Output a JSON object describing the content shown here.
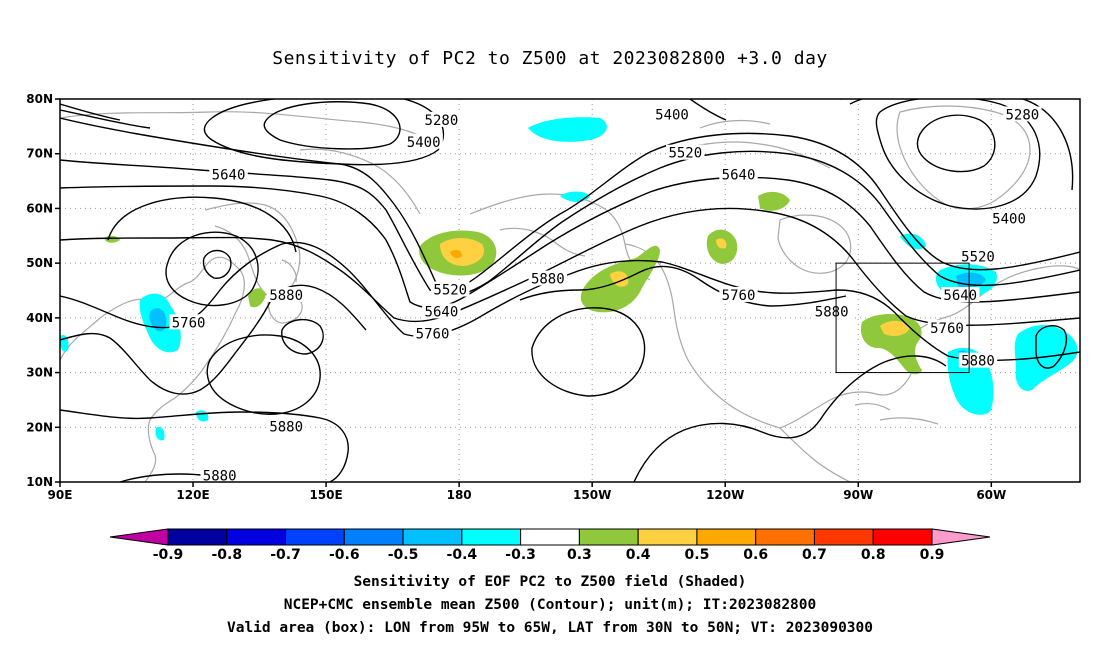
{
  "title": "Sensitivity of PC2 to Z500 at 2023082800 +3.0 day",
  "map": {
    "lat_labels": [
      "80N",
      "70N",
      "60N",
      "50N",
      "40N",
      "30N",
      "20N",
      "10N"
    ],
    "lon_labels": [
      "90E",
      "120E",
      "150E",
      "180",
      "150W",
      "120W",
      "90W",
      "60W"
    ],
    "lat_range": [
      10,
      80
    ],
    "lon_range_east": [
      90,
      320
    ],
    "grid": "dotted",
    "contour_color": "#000000",
    "coastline_color": "#a8a8a8",
    "contour_labels": [
      {
        "text": "5280",
        "lon": 176,
        "lat": 76
      },
      {
        "text": "5400",
        "lon": 172,
        "lat": 72
      },
      {
        "text": "5640",
        "lon": 128,
        "lat": 66
      },
      {
        "text": "5400",
        "lon": 228,
        "lat": 77
      },
      {
        "text": "5520",
        "lon": 231,
        "lat": 70
      },
      {
        "text": "5640",
        "lon": 243,
        "lat": 66
      },
      {
        "text": "5280",
        "lon": 307,
        "lat": 77
      },
      {
        "text": "5400",
        "lon": 304,
        "lat": 58
      },
      {
        "text": "5520",
        "lon": 297,
        "lat": 51
      },
      {
        "text": "5640",
        "lon": 293,
        "lat": 44
      },
      {
        "text": "5760",
        "lon": 290,
        "lat": 38
      },
      {
        "text": "5880",
        "lon": 297,
        "lat": 32
      },
      {
        "text": "5880",
        "lon": 200,
        "lat": 47
      },
      {
        "text": "5760",
        "lon": 243,
        "lat": 44
      },
      {
        "text": "5880",
        "lon": 264,
        "lat": 41
      },
      {
        "text": "5520",
        "lon": 178,
        "lat": 45
      },
      {
        "text": "5640",
        "lon": 176,
        "lat": 41
      },
      {
        "text": "5760",
        "lon": 174,
        "lat": 37
      },
      {
        "text": "5880",
        "lon": 141,
        "lat": 44
      },
      {
        "text": "5760",
        "lon": 119,
        "lat": 39
      },
      {
        "text": "5880",
        "lon": 141,
        "lat": 20
      },
      {
        "text": "5880",
        "lon": 126,
        "lat": 11
      }
    ],
    "valid_box": {
      "lon": [
        265,
        295
      ],
      "lat": [
        30,
        50
      ]
    }
  },
  "colorbar": {
    "labels": [
      "-0.9",
      "-0.8",
      "-0.7",
      "-0.6",
      "-0.5",
      "-0.4",
      "-0.3",
      "0.3",
      "0.4",
      "0.5",
      "0.6",
      "0.7",
      "0.8",
      "0.9"
    ],
    "colors": [
      "#0000a0",
      "#0000e0",
      "#0040ff",
      "#0080ff",
      "#00c0ff",
      "#00ffff",
      "#ffffff",
      "#90c83c",
      "#ffd040",
      "#ffa800",
      "#ff7000",
      "#ff3800",
      "#ff0000"
    ],
    "low_end_color": "#c000a0",
    "high_end_color": "#ff9ccc"
  },
  "captions": {
    "line1": "Sensitivity of EOF PC2 to Z500 field (Shaded)",
    "line2": "NCEP+CMC ensemble mean Z500 (Contour); unit(m); IT:2023082800",
    "line3": "Valid area (box): LON from 95W to 65W, LAT from 30N to 50N; VT: 2023090300"
  }
}
